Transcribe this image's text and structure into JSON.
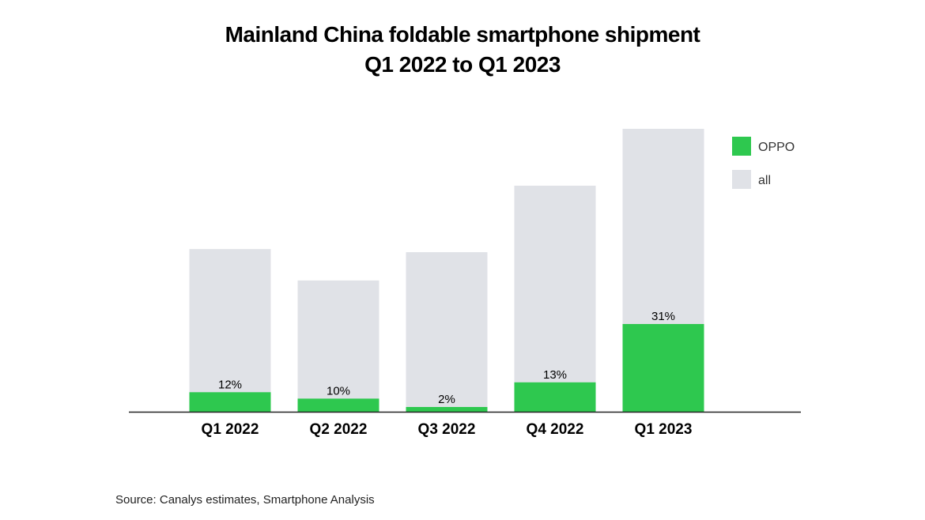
{
  "chart_data": {
    "type": "bar",
    "title": "Mainland China foldable smartphone shipment",
    "subtitle": "Q1 2022 to Q1 2023",
    "categories": [
      "Q1 2022",
      "Q2 2022",
      "Q3 2022",
      "Q4 2022",
      "Q1 2023"
    ],
    "series": [
      {
        "name": "all",
        "values": [
          57.5,
          46.4,
          56.4,
          79.9,
          100
        ],
        "color": "#e0e2e7"
      },
      {
        "name": "OPPO",
        "share_percent": [
          12,
          10,
          2,
          13,
          31
        ],
        "data_labels": [
          "12%",
          "10%",
          "2%",
          "13%",
          "31%"
        ],
        "color": "#2ec84f"
      }
    ],
    "value_note": "all values relative, Q1 2023 = 100 (no y-axis printed)",
    "ylim": [
      0,
      100
    ],
    "xlabel": "",
    "ylabel": "",
    "grid": false,
    "legend": {
      "position": "top-right",
      "entries": [
        "OPPO",
        "all"
      ]
    },
    "overlay": true
  },
  "source": "Source: Canalys estimates, Smartphone Analysis"
}
